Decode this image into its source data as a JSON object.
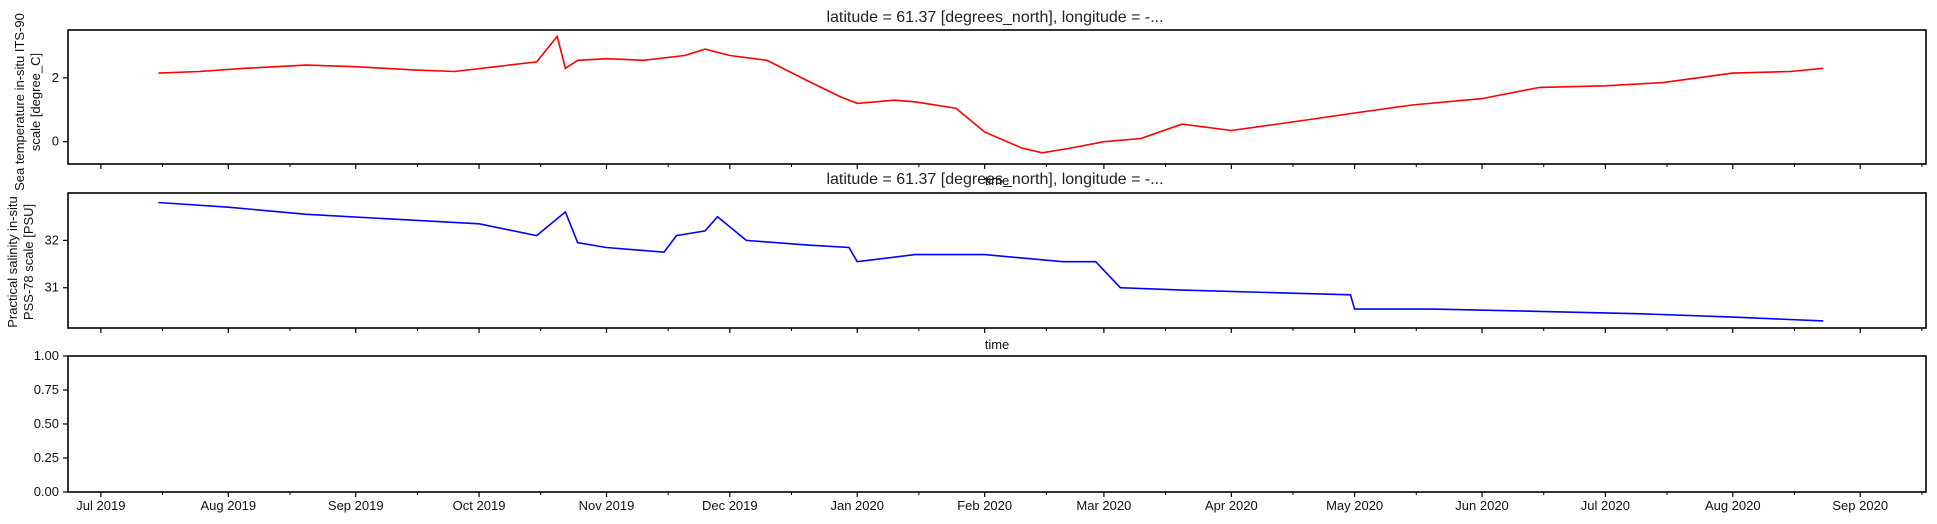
{
  "chart_data": [
    {
      "type": "line",
      "title": "latitude = 61.37 [degrees_north], longitude = -...",
      "ylabel_line1": "Sea temperature in-situ ITS-90",
      "ylabel_line2": "scale [degree_C]",
      "xlabel": "time",
      "ylim": [
        -0.7,
        3.5
      ],
      "yticks": [
        0,
        2
      ],
      "color": "#ff0000",
      "series": [
        {
          "x": [
            "2019-07-15",
            "2019-07-25",
            "2019-08-05",
            "2019-08-20",
            "2019-09-01",
            "2019-09-15",
            "2019-09-25",
            "2019-10-05",
            "2019-10-15",
            "2019-10-20",
            "2019-10-22",
            "2019-10-25",
            "2019-11-01",
            "2019-11-10",
            "2019-11-20",
            "2019-11-25",
            "2019-12-01",
            "2019-12-10",
            "2019-12-20",
            "2019-12-28",
            "2020-01-01",
            "2020-01-10",
            "2020-01-15",
            "2020-01-25",
            "2020-02-01",
            "2020-02-10",
            "2020-02-15",
            "2020-02-22",
            "2020-03-01",
            "2020-03-10",
            "2020-03-20",
            "2020-04-01",
            "2020-04-15",
            "2020-05-01",
            "2020-05-15",
            "2020-06-01",
            "2020-06-15",
            "2020-07-01",
            "2020-07-15",
            "2020-08-01",
            "2020-08-15",
            "2020-08-23"
          ],
          "y": [
            2.15,
            2.2,
            2.3,
            2.4,
            2.35,
            2.25,
            2.2,
            2.35,
            2.5,
            3.3,
            2.3,
            2.55,
            2.6,
            2.55,
            2.7,
            2.9,
            2.7,
            2.55,
            1.9,
            1.4,
            1.2,
            1.3,
            1.25,
            1.05,
            0.3,
            -0.2,
            -0.35,
            -0.2,
            0.0,
            0.1,
            0.55,
            0.35,
            0.6,
            0.9,
            1.15,
            1.35,
            1.7,
            1.75,
            1.85,
            2.15,
            2.2,
            2.3
          ]
        }
      ]
    },
    {
      "type": "line",
      "title": "latitude = 61.37 [degrees_north], longitude = -...",
      "ylabel_line1": "Practical salinity in-situ",
      "ylabel_line2": "PSS-78 scale [PSU]",
      "xlabel": "time",
      "ylim": [
        30.15,
        33.0
      ],
      "yticks": [
        31,
        32
      ],
      "color": "#0000ff",
      "series": [
        {
          "x": [
            "2019-07-15",
            "2019-08-01",
            "2019-08-20",
            "2019-09-10",
            "2019-10-01",
            "2019-10-15",
            "2019-10-22",
            "2019-10-25",
            "2019-11-01",
            "2019-11-15",
            "2019-11-18",
            "2019-11-25",
            "2019-11-28",
            "2019-12-05",
            "2019-12-20",
            "2019-12-30",
            "2020-01-01",
            "2020-01-15",
            "2020-02-01",
            "2020-02-20",
            "2020-02-28",
            "2020-03-05",
            "2020-03-20",
            "2020-04-10",
            "2020-04-30",
            "2020-05-01",
            "2020-05-20",
            "2020-06-15",
            "2020-07-10",
            "2020-08-01",
            "2020-08-23"
          ],
          "y": [
            32.8,
            32.7,
            32.55,
            32.45,
            32.35,
            32.1,
            32.6,
            31.95,
            31.85,
            31.75,
            32.1,
            32.2,
            32.5,
            32.0,
            31.9,
            31.85,
            31.55,
            31.7,
            31.7,
            31.55,
            31.55,
            31.0,
            30.95,
            30.9,
            30.85,
            30.55,
            30.55,
            30.5,
            30.45,
            30.38,
            30.3
          ]
        }
      ]
    },
    {
      "type": "line",
      "title": "",
      "ylabel_line1": "",
      "ylabel_line2": "",
      "xlabel": "",
      "ylim": [
        0.0,
        1.0
      ],
      "yticks": [
        0.0,
        0.25,
        0.5,
        0.75,
        1.0
      ],
      "ytick_labels": [
        "0.00",
        "0.25",
        "0.50",
        "0.75",
        "1.00"
      ],
      "color": "#000000",
      "series": []
    }
  ],
  "shared_x": {
    "domain": [
      "2019-06-23",
      "2020-09-17"
    ],
    "ticks": [
      "2019-07-01",
      "2019-08-01",
      "2019-09-01",
      "2019-10-01",
      "2019-11-01",
      "2019-12-01",
      "2020-01-01",
      "2020-02-01",
      "2020-03-01",
      "2020-04-01",
      "2020-05-01",
      "2020-06-01",
      "2020-07-01",
      "2020-08-01",
      "2020-09-01"
    ],
    "tick_labels": [
      "Jul 2019",
      "Aug 2019",
      "Sep 2019",
      "Oct 2019",
      "Nov 2019",
      "Dec 2019",
      "Jan 2020",
      "Feb 2020",
      "Mar 2020",
      "Apr 2020",
      "May 2020",
      "Jun 2020",
      "Jul 2020",
      "Aug 2020",
      "Sep 2020"
    ]
  }
}
